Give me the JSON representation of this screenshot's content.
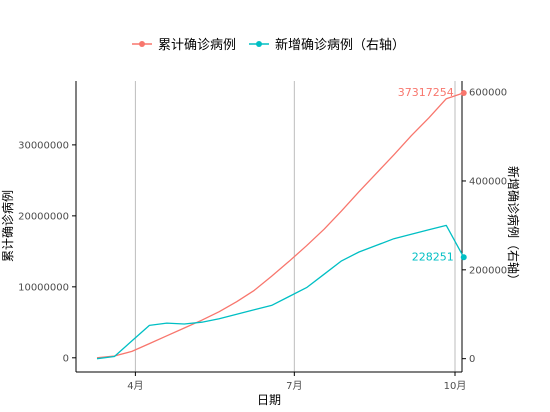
{
  "chart_data": {
    "type": "line",
    "xlabel": "日期",
    "ylabel_left": "累计确诊病例",
    "ylabel_right": "新增确诊病例（右轴）",
    "legend_position": "top",
    "x_ticks": [
      "4月",
      "7月",
      "10月"
    ],
    "y_left_ticks": [
      0,
      10000000,
      20000000,
      30000000
    ],
    "y_left_tick_labels": [
      "0",
      "10000000",
      "20000000",
      "30000000"
    ],
    "y_left_range": [
      -2000000,
      39000000
    ],
    "y_right_ticks": [
      0,
      200000,
      400000,
      600000
    ],
    "y_right_tick_labels": [
      "0",
      "200000",
      "400000",
      "600000"
    ],
    "y_right_range": [
      -30000,
      625000
    ],
    "x_range_days": [
      -12,
      209
    ],
    "x_tick_days": [
      22,
      113,
      205
    ],
    "grid": {
      "vertical_major": true,
      "horizontal": false
    },
    "series": [
      {
        "name": "累计确诊病例",
        "axis": "left",
        "color": "#F8766D",
        "last_label": "37317254",
        "last_value": 37317254,
        "x": [
          0,
          10,
          20,
          30,
          40,
          50,
          60,
          70,
          80,
          90,
          100,
          110,
          120,
          130,
          140,
          150,
          160,
          170,
          180,
          190,
          200,
          210
        ],
        "y": [
          0,
          250000,
          900000,
          2000000,
          3100000,
          4200000,
          5300000,
          6500000,
          7900000,
          9500000,
          11500000,
          13600000,
          15800000,
          18100000,
          20700000,
          23400000,
          26000000,
          28600000,
          31300000,
          33800000,
          36500000,
          37317254
        ]
      },
      {
        "name": "新增确诊病例（右轴）",
        "axis": "right",
        "color": "#00BFC4",
        "last_label": "228251",
        "last_value": 228251,
        "x": [
          0,
          10,
          20,
          30,
          40,
          50,
          60,
          70,
          80,
          90,
          100,
          110,
          120,
          130,
          140,
          150,
          160,
          170,
          180,
          190,
          200,
          210
        ],
        "y": [
          0,
          5000,
          40000,
          75000,
          80000,
          78000,
          82000,
          90000,
          100000,
          110000,
          120000,
          140000,
          160000,
          190000,
          220000,
          240000,
          255000,
          270000,
          280000,
          290000,
          300000,
          228251
        ]
      }
    ]
  }
}
